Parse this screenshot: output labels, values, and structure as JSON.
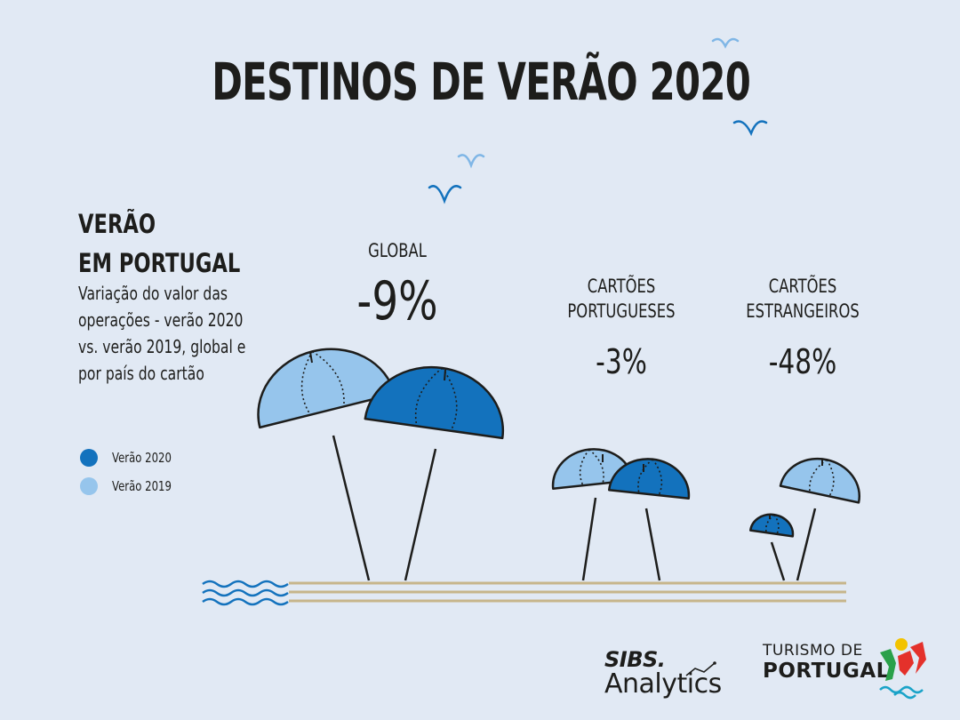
{
  "title": "DESTINOS DE VERÃO 2020",
  "heading_line1": "VERÃO",
  "heading_line2": "EM PORTUGAL",
  "description_lines": [
    "Variação do valor das",
    "operações - verão 2020",
    "vs. verão 2019, global e",
    "por país do cartão"
  ],
  "legend": [
    {
      "label": "Verão 2020",
      "color": "#1372bd"
    },
    {
      "label": "Verão 2019",
      "color": "#96c5ec"
    }
  ],
  "groups": [
    {
      "label_line1": "GLOBAL",
      "label_line2": "",
      "value": "-9%"
    },
    {
      "label_line1": "CARTÕES",
      "label_line2": "PORTUGUESES",
      "value": "-3%"
    },
    {
      "label_line1": "CARTÕES",
      "label_line2": "ESTRANGEIROS",
      "value": "-48%"
    }
  ],
  "chart_data": {
    "type": "bar",
    "title": "DESTINOS DE VERÃO 2020",
    "categories": [
      "GLOBAL",
      "CARTÕES PORTUGUESES",
      "CARTÕES ESTRANGEIROS"
    ],
    "series": [
      {
        "name": "Verão 2020",
        "color": "#1372bd"
      },
      {
        "name": "Verão 2019",
        "color": "#96c5ec"
      }
    ],
    "change_pct": [
      -9,
      -3,
      -48
    ]
  },
  "logos": {
    "sibs_main": "SIBS.",
    "sibs_sub": "Analytics",
    "tp_line1": "TURISMO DE",
    "tp_line2": "PORTUGAL"
  },
  "colors": {
    "background": "#e1e9f4",
    "dark_blue": "#1372bd",
    "light_blue": "#96c5ec",
    "sand": "#c6b58a",
    "ink": "#1d1d1b"
  }
}
